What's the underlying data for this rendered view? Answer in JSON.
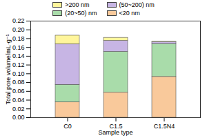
{
  "chart_data": {
    "type": "bar",
    "stacked": true,
    "x_label": "Sample type",
    "y_label": "Total pore volume/mL·g⁻¹",
    "categories": [
      "C0",
      "C1.5",
      "C1.5N4"
    ],
    "series": [
      {
        "name": "<20 nm",
        "color": "#f9c99b",
        "values": [
          0.035,
          0.057,
          0.093
        ]
      },
      {
        "name": "(20~50) nm",
        "color": "#a9dcaa",
        "values": [
          0.04,
          0.093,
          0.075
        ]
      },
      {
        "name": "(50~200) nm",
        "color": "#c7b5e4",
        "values": [
          0.092,
          0.025,
          0.004
        ]
      },
      {
        "name": ">200 nm",
        "color": "#fff59b",
        "values": [
          0.02,
          0.007,
          0.001
        ]
      }
    ],
    "ylim": [
      0,
      0.22
    ],
    "yticks": [
      {
        "value": 0,
        "label": "0.00"
      },
      {
        "value": 0.02,
        "label": "0.02"
      },
      {
        "value": 0.04,
        "label": "0.04"
      },
      {
        "value": 0.06,
        "label": "0.06"
      },
      {
        "value": 0.08,
        "label": "0.08"
      },
      {
        "value": 0.1,
        "label": "0.10"
      },
      {
        "value": 0.12,
        "label": "0.12"
      },
      {
        "value": 0.14,
        "label": "0.14"
      },
      {
        "value": 0.16,
        "label": "0.16"
      },
      {
        "value": 0.18,
        "label": "0.18"
      },
      {
        "value": 0.2,
        "label": "0.20"
      },
      {
        "value": 0.22,
        "label": "0.22"
      }
    ],
    "legend": "top"
  }
}
